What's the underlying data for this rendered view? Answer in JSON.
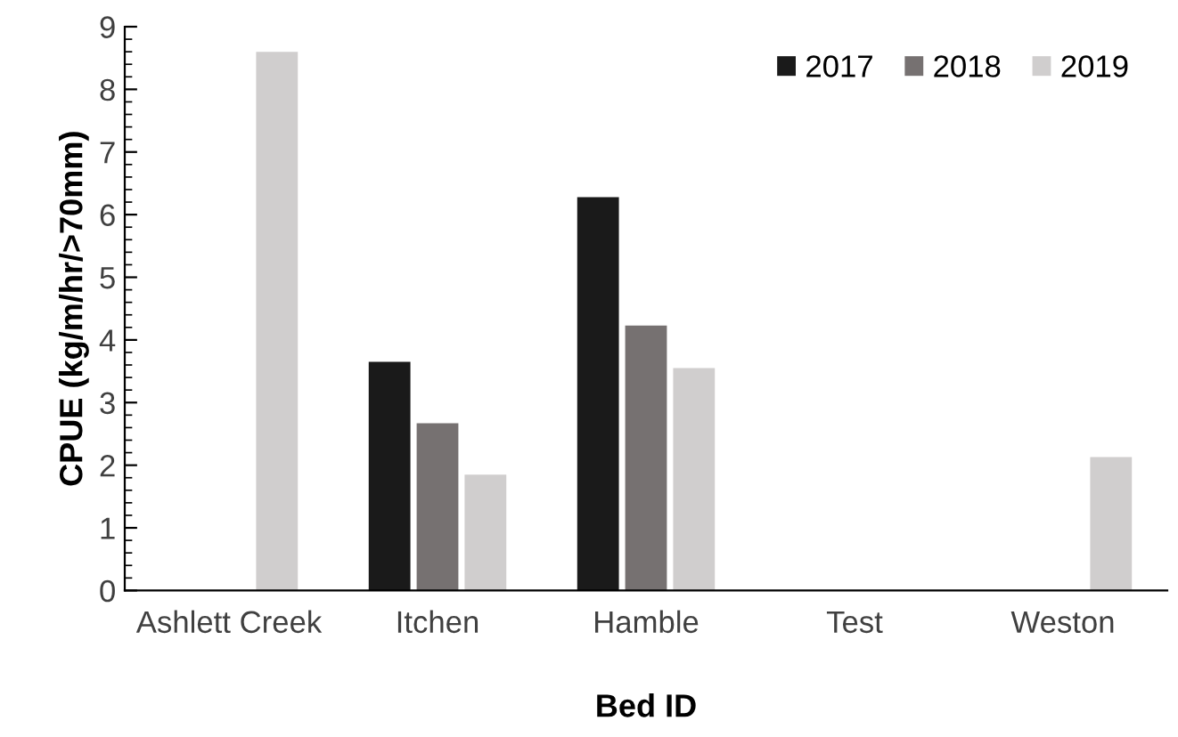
{
  "chart_data": {
    "type": "bar",
    "xlabel": "Bed ID",
    "ylabel": "CPUE (kg/m/hr/>70mm)",
    "categories": [
      "Ashlett Creek",
      "Itchen",
      "Hamble",
      "Test",
      "Weston"
    ],
    "series": [
      {
        "name": "2017",
        "color": "#1a1a1a",
        "values": [
          null,
          3.65,
          6.28,
          null,
          null
        ]
      },
      {
        "name": "2018",
        "color": "#767171",
        "values": [
          null,
          2.67,
          4.23,
          null,
          null
        ]
      },
      {
        "name": "2019",
        "color": "#d0cece",
        "values": [
          8.6,
          1.85,
          3.55,
          null,
          2.13
        ]
      }
    ],
    "ylim": [
      0,
      9
    ],
    "yticks": [
      0,
      1,
      2,
      3,
      4,
      5,
      6,
      7,
      8,
      9
    ],
    "grid": false,
    "legend": "top right"
  }
}
